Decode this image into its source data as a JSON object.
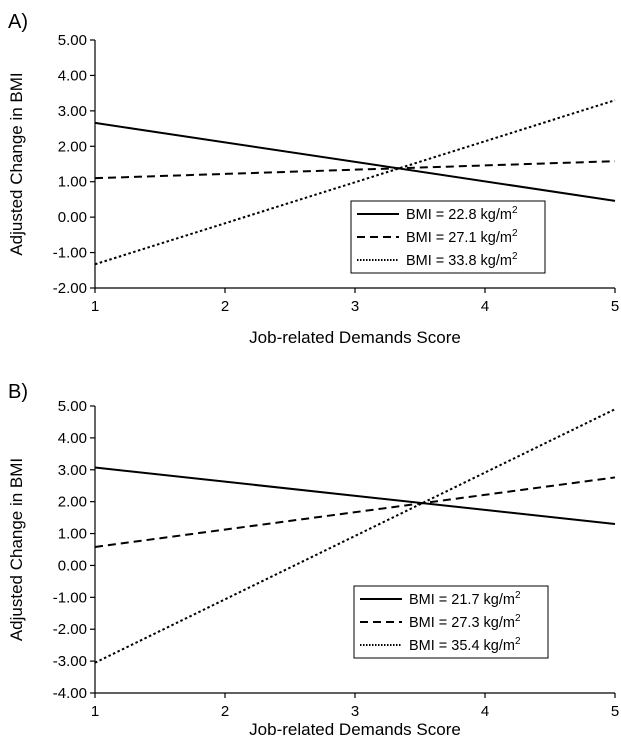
{
  "chart_data": [
    {
      "type": "line",
      "panel_label": "A)",
      "xlabel": "Job-related Demands Score",
      "ylabel": "Adjusted Change in BMI",
      "xlim": [
        1,
        5
      ],
      "ylim": [
        -2,
        5
      ],
      "xticks": [
        "1",
        "2",
        "3",
        "4",
        "5"
      ],
      "yticks": [
        "5.00",
        "4.00",
        "3.00",
        "2.00",
        "1.00",
        "0.00",
        "-1.00",
        "-2.00"
      ],
      "grid": false,
      "legend_position": "bottom-right",
      "series": [
        {
          "name": "BMI = 22.8 kg/m",
          "superscript": "2",
          "style": "solid",
          "x": [
            1,
            5
          ],
          "y": [
            2.66,
            0.46
          ]
        },
        {
          "name": "BMI = 27.1 kg/m",
          "superscript": "2",
          "style": "dashed",
          "x": [
            1,
            5
          ],
          "y": [
            1.1,
            1.58
          ]
        },
        {
          "name": "BMI = 33.8 kg/m",
          "superscript": "2",
          "style": "dotted",
          "x": [
            1,
            5
          ],
          "y": [
            -1.33,
            3.3
          ]
        }
      ]
    },
    {
      "type": "line",
      "panel_label": "B)",
      "xlabel": "Job-related Demands Score",
      "ylabel": "Adjusted Change in BMI",
      "xlim": [
        1,
        5
      ],
      "ylim": [
        -4,
        5
      ],
      "xticks": [
        "1",
        "2",
        "3",
        "4",
        "5"
      ],
      "yticks": [
        "5.00",
        "4.00",
        "3.00",
        "2.00",
        "1.00",
        "0.00",
        "-1.00",
        "-2.00",
        "-3.00",
        "-4.00"
      ],
      "grid": false,
      "legend_position": "bottom-right",
      "series": [
        {
          "name": "BMI = 21.7 kg/m",
          "superscript": "2",
          "style": "solid",
          "x": [
            1,
            5
          ],
          "y": [
            3.07,
            1.3
          ]
        },
        {
          "name": "BMI = 27.3 kg/m",
          "superscript": "2",
          "style": "dashed",
          "x": [
            1,
            5
          ],
          "y": [
            0.58,
            2.76
          ]
        },
        {
          "name": "BMI = 35.4 kg/m",
          "superscript": "2",
          "style": "dotted",
          "x": [
            1,
            5
          ],
          "y": [
            -3.05,
            4.9
          ]
        }
      ]
    }
  ]
}
